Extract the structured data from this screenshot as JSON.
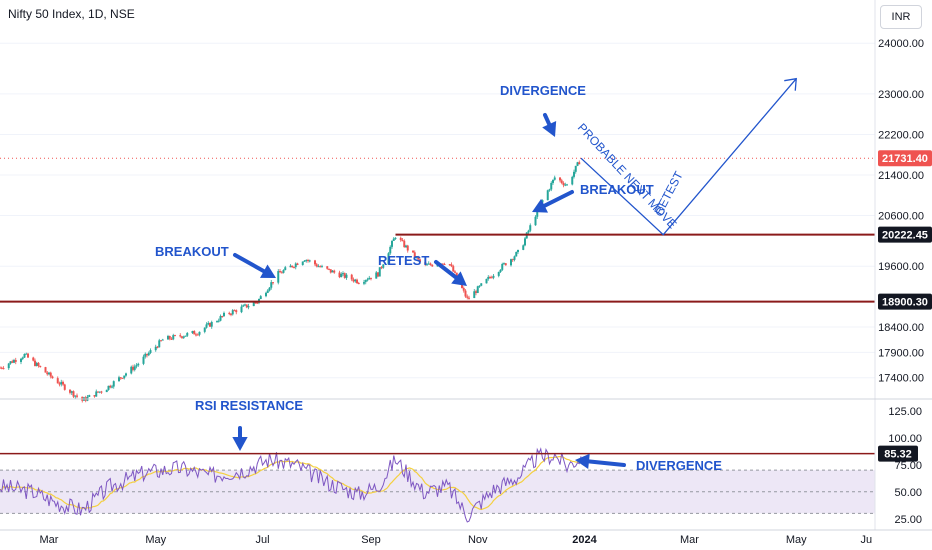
{
  "header": {
    "title": "Nifty 50 Index, 1D, NSE",
    "currency": "INR"
  },
  "colors": {
    "up": "#26a69a",
    "down": "#ef5350",
    "level": "#8b1a1a",
    "annotation": "#2255cc",
    "rsi_line": "#7e57c2",
    "rsi_ma": "#f4d03f",
    "rsi_band": "#ede7f6"
  },
  "chart_data": [
    {
      "type": "candlestick",
      "title": "Nifty 50 Index, 1D, NSE",
      "x_ticks": [
        "Mar",
        "May",
        "Jul",
        "Sep",
        "Nov",
        "2024",
        "Mar",
        "May",
        "Ju"
      ],
      "y_ticks": [
        24000,
        23000,
        22200,
        21400,
        20600,
        19600,
        18400,
        17900,
        17400
      ],
      "y_tick_labels": [
        "24000.00",
        "23000.00",
        "22200.00",
        "21400.00",
        "20600.00",
        "19600.00",
        "18400.00",
        "17900.00",
        "17400.00"
      ],
      "ylim": [
        17000,
        24300
      ],
      "price_path": [
        [
          "2023-02-01",
          17600
        ],
        [
          "2023-02-15",
          17850
        ],
        [
          "2023-03-01",
          17450
        ],
        [
          "2023-03-20",
          16950
        ],
        [
          "2023-04-03",
          17200
        ],
        [
          "2023-04-20",
          17650
        ],
        [
          "2023-05-05",
          18150
        ],
        [
          "2023-05-25",
          18300
        ],
        [
          "2023-06-10",
          18650
        ],
        [
          "2023-06-28",
          18900
        ],
        [
          "2023-07-10",
          19450
        ],
        [
          "2023-07-25",
          19750
        ],
        [
          "2023-08-05",
          19550
        ],
        [
          "2023-08-25",
          19300
        ],
        [
          "2023-09-05",
          19450
        ],
        [
          "2023-09-15",
          20200
        ],
        [
          "2023-10-01",
          19600
        ],
        [
          "2023-10-15",
          19700
        ],
        [
          "2023-10-26",
          18950
        ],
        [
          "2023-11-10",
          19450
        ],
        [
          "2023-11-25",
          19900
        ],
        [
          "2023-12-05",
          20700
        ],
        [
          "2023-12-15",
          21350
        ],
        [
          "2023-12-22",
          21200
        ],
        [
          "2023-12-30",
          21731.4
        ]
      ],
      "levels": [
        {
          "value": 20222.45,
          "label": "20222.45"
        },
        {
          "value": 18900.3,
          "label": "18900.30"
        }
      ],
      "last_price": {
        "value": 21731.4,
        "label": "21731.40"
      },
      "annotations": [
        {
          "text": "DIVERGENCE"
        },
        {
          "text": "BREAKOUT"
        },
        {
          "text": "BREAKOUT"
        },
        {
          "text": "RETEST"
        },
        {
          "text": "PROBABLE NEXT MOVE"
        },
        {
          "text": "RETEST"
        }
      ],
      "projection": [
        [
          "2023-12-30",
          21731.4
        ],
        [
          "2024-02-15",
          20222.45
        ],
        [
          "2024-05-01",
          23300
        ]
      ]
    },
    {
      "type": "line",
      "title": "RSI",
      "y_ticks": [
        125,
        100,
        75,
        50,
        25
      ],
      "y_tick_labels": [
        "125.00",
        "100.00",
        "75.00",
        "50.00",
        "25.00"
      ],
      "ylim": [
        22,
        135
      ],
      "band": [
        30,
        70
      ],
      "resistance": {
        "value": 85.32,
        "label": "85.32"
      },
      "annotations": [
        {
          "text": "RSI RESISTANCE"
        },
        {
          "text": "DIVERGENCE"
        }
      ],
      "rsi_path": [
        [
          "2023-02-01",
          55
        ],
        [
          "2023-02-20",
          50
        ],
        [
          "2023-03-05",
          40
        ],
        [
          "2023-03-20",
          33
        ],
        [
          "2023-04-05",
          55
        ],
        [
          "2023-04-25",
          68
        ],
        [
          "2023-05-15",
          72
        ],
        [
          "2023-06-01",
          65
        ],
        [
          "2023-06-20",
          70
        ],
        [
          "2023-07-05",
          80
        ],
        [
          "2023-07-20",
          75
        ],
        [
          "2023-08-05",
          60
        ],
        [
          "2023-08-25",
          48
        ],
        [
          "2023-09-05",
          55
        ],
        [
          "2023-09-15",
          80
        ],
        [
          "2023-10-01",
          50
        ],
        [
          "2023-10-15",
          55
        ],
        [
          "2023-10-26",
          28
        ],
        [
          "2023-11-10",
          52
        ],
        [
          "2023-11-25",
          65
        ],
        [
          "2023-12-05",
          82
        ],
        [
          "2023-12-15",
          84
        ],
        [
          "2023-12-22",
          74
        ],
        [
          "2023-12-30",
          82
        ]
      ]
    }
  ]
}
